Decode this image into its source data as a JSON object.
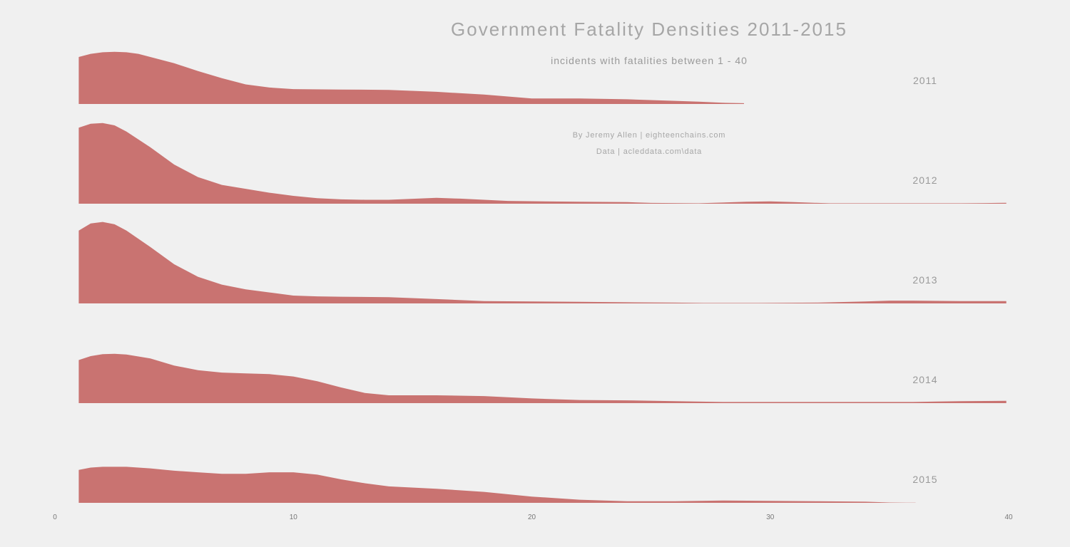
{
  "chart_data": {
    "type": "area",
    "title": "Government Fatality Densities 2011-2015",
    "subtitle": "incidents with fatalities between 1 - 40",
    "credit_author": "By Jeremy Allen | eighteenchains.com",
    "credit_data": "Data | acleddata.com\\data",
    "xlim": [
      0,
      40
    ],
    "ylim": [
      0,
      1
    ],
    "grid": false,
    "x_ticks": [
      0,
      10,
      20,
      30,
      40
    ],
    "x_tick_labels": [
      "0",
      "10",
      "20",
      "30",
      "40"
    ],
    "fill_color": "#c97371",
    "series": [
      {
        "name": "2011",
        "points": [
          [
            1,
            0.6
          ],
          [
            1.5,
            0.64
          ],
          [
            2,
            0.66
          ],
          [
            2.5,
            0.665
          ],
          [
            3,
            0.66
          ],
          [
            3.5,
            0.64
          ],
          [
            4,
            0.6
          ],
          [
            5,
            0.52
          ],
          [
            6,
            0.42
          ],
          [
            7,
            0.33
          ],
          [
            8,
            0.25
          ],
          [
            9,
            0.21
          ],
          [
            10,
            0.19
          ],
          [
            12,
            0.185
          ],
          [
            14,
            0.18
          ],
          [
            16,
            0.155
          ],
          [
            18,
            0.12
          ],
          [
            20,
            0.07
          ],
          [
            22,
            0.07
          ],
          [
            24,
            0.06
          ],
          [
            26,
            0.04
          ],
          [
            27,
            0.03
          ],
          [
            28,
            0.015
          ],
          [
            28.9,
            0.01
          ]
        ]
      },
      {
        "name": "2012",
        "points": [
          [
            1,
            0.97
          ],
          [
            1.5,
            1.02
          ],
          [
            2,
            1.03
          ],
          [
            2.5,
            1.0
          ],
          [
            3,
            0.92
          ],
          [
            4,
            0.72
          ],
          [
            5,
            0.5
          ],
          [
            6,
            0.34
          ],
          [
            7,
            0.24
          ],
          [
            8,
            0.19
          ],
          [
            9,
            0.14
          ],
          [
            10,
            0.1
          ],
          [
            11,
            0.07
          ],
          [
            12,
            0.055
          ],
          [
            13,
            0.05
          ],
          [
            14,
            0.05
          ],
          [
            16,
            0.075
          ],
          [
            17,
            0.065
          ],
          [
            19,
            0.035
          ],
          [
            22,
            0.025
          ],
          [
            24,
            0.02
          ],
          [
            25,
            0.01
          ],
          [
            27,
            0.005
          ],
          [
            28,
            0.015
          ],
          [
            29,
            0.025
          ],
          [
            30,
            0.03
          ],
          [
            31,
            0.02
          ],
          [
            32,
            0.01
          ],
          [
            32.5,
            0.005
          ],
          [
            38,
            0.005
          ],
          [
            39,
            0.008
          ],
          [
            39.9,
            0.012
          ]
        ]
      },
      {
        "name": "2013",
        "points": [
          [
            1,
            0.93
          ],
          [
            1.5,
            1.02
          ],
          [
            2,
            1.04
          ],
          [
            2.5,
            1.01
          ],
          [
            3,
            0.93
          ],
          [
            4,
            0.72
          ],
          [
            5,
            0.5
          ],
          [
            6,
            0.34
          ],
          [
            7,
            0.24
          ],
          [
            8,
            0.18
          ],
          [
            9,
            0.14
          ],
          [
            10,
            0.1
          ],
          [
            11,
            0.09
          ],
          [
            12,
            0.085
          ],
          [
            14,
            0.08
          ],
          [
            16,
            0.055
          ],
          [
            18,
            0.03
          ],
          [
            20,
            0.025
          ],
          [
            22,
            0.02
          ],
          [
            24,
            0.015
          ],
          [
            26,
            0.01
          ],
          [
            27.2,
            0.005
          ],
          [
            29.5,
            0.005
          ],
          [
            32,
            0.01
          ],
          [
            34,
            0.025
          ],
          [
            35,
            0.035
          ],
          [
            36,
            0.035
          ],
          [
            38,
            0.03
          ],
          [
            39.9,
            0.03
          ]
        ]
      },
      {
        "name": "2014",
        "points": [
          [
            1,
            0.55
          ],
          [
            1.5,
            0.6
          ],
          [
            2,
            0.625
          ],
          [
            2.5,
            0.63
          ],
          [
            3,
            0.62
          ],
          [
            4,
            0.57
          ],
          [
            5,
            0.48
          ],
          [
            6,
            0.42
          ],
          [
            7,
            0.39
          ],
          [
            8,
            0.38
          ],
          [
            9,
            0.37
          ],
          [
            10,
            0.34
          ],
          [
            11,
            0.28
          ],
          [
            12,
            0.2
          ],
          [
            13,
            0.13
          ],
          [
            14,
            0.1
          ],
          [
            16,
            0.1
          ],
          [
            18,
            0.09
          ],
          [
            20,
            0.06
          ],
          [
            22,
            0.04
          ],
          [
            24,
            0.035
          ],
          [
            26,
            0.025
          ],
          [
            28,
            0.015
          ],
          [
            30,
            0.015
          ],
          [
            32,
            0.015
          ],
          [
            34,
            0.015
          ],
          [
            36,
            0.015
          ],
          [
            37,
            0.02
          ],
          [
            38,
            0.025
          ],
          [
            39.9,
            0.03
          ]
        ]
      },
      {
        "name": "2015",
        "points": [
          [
            1,
            0.42
          ],
          [
            1.5,
            0.45
          ],
          [
            2,
            0.46
          ],
          [
            3,
            0.46
          ],
          [
            4,
            0.44
          ],
          [
            5,
            0.41
          ],
          [
            6,
            0.39
          ],
          [
            7,
            0.37
          ],
          [
            8,
            0.37
          ],
          [
            9,
            0.39
          ],
          [
            10,
            0.39
          ],
          [
            11,
            0.36
          ],
          [
            12,
            0.3
          ],
          [
            13,
            0.25
          ],
          [
            14,
            0.21
          ],
          [
            16,
            0.18
          ],
          [
            18,
            0.14
          ],
          [
            20,
            0.08
          ],
          [
            22,
            0.04
          ],
          [
            24,
            0.02
          ],
          [
            26,
            0.02
          ],
          [
            28,
            0.03
          ],
          [
            30,
            0.025
          ],
          [
            32,
            0.02
          ],
          [
            34,
            0.015
          ],
          [
            35,
            0.005
          ],
          [
            36.1,
            0.002
          ]
        ]
      }
    ]
  }
}
